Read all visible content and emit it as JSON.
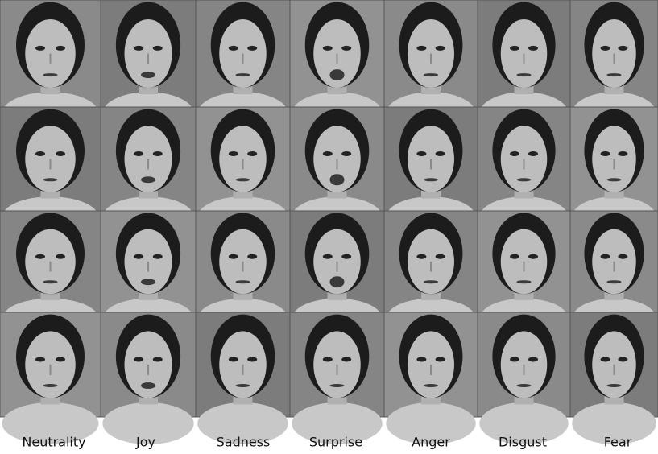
{
  "labels": [
    "Neutrality",
    "Joy",
    "Sadness",
    "Surprise",
    "Anger",
    "Disgust",
    "Fear"
  ]
}
